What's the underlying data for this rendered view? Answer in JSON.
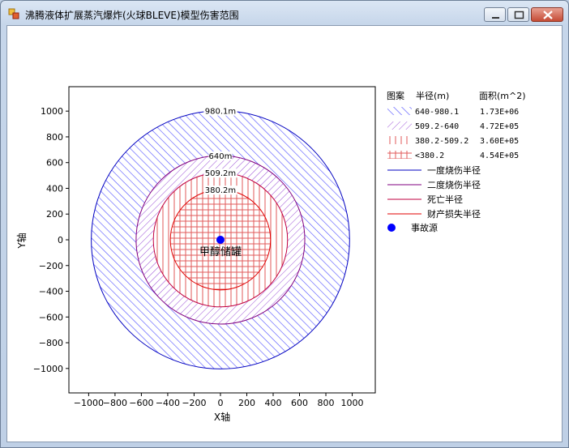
{
  "window": {
    "title": "沸腾液体扩展蒸汽爆炸(火球BLEVE)模型伤害范围"
  },
  "colors": {
    "outer_ring": "#0000c0",
    "second_ring": "#800080",
    "death_ring": "#c00040",
    "property_ring": "#e00000",
    "hatch_blue": "#4d4dff",
    "hatch_purple": "#9a4dd6",
    "hatch_red": "#e05a5a",
    "source_dot": "#0000ff"
  },
  "chart_data": {
    "type": "scatter",
    "xlabel": "X轴",
    "ylabel": "Y轴",
    "xlim": [
      -1150,
      1175
    ],
    "ylim": [
      -1190,
      1190
    ],
    "xticks": [
      -1000,
      -800,
      -600,
      -400,
      -200,
      0,
      200,
      400,
      600,
      800,
      1000
    ],
    "yticks": [
      1000,
      800,
      600,
      400,
      200,
      0,
      -200,
      -400,
      -600,
      -800,
      -1000
    ],
    "source": {
      "x": 0,
      "y": 0,
      "label": "甲醇储罐"
    },
    "radii": [
      {
        "key": "r1",
        "value": 980.1,
        "label": "980.1m"
      },
      {
        "key": "r2",
        "value": 640,
        "label": "640m"
      },
      {
        "key": "r3",
        "value": 509.2,
        "label": "509.2m"
      },
      {
        "key": "r4",
        "value": 380.2,
        "label": "380.2m"
      }
    ]
  },
  "legend": {
    "headers": {
      "pattern": "图案",
      "radius": "半径(m)",
      "area": "面积(m^2)"
    },
    "fill_rows": [
      {
        "range": "640-980.1",
        "area": "1.73E+06"
      },
      {
        "range": "509.2-640",
        "area": "4.72E+05"
      },
      {
        "range": "380.2-509.2",
        "area": "3.60E+05"
      },
      {
        "range": "<380.2",
        "area": "4.54E+05"
      }
    ],
    "line_rows": [
      {
        "label": "一度烧伤半径"
      },
      {
        "label": "二度烧伤半径"
      },
      {
        "label": "死亡半径"
      },
      {
        "label": "财产损失半径"
      }
    ],
    "source_label": "事故源"
  }
}
